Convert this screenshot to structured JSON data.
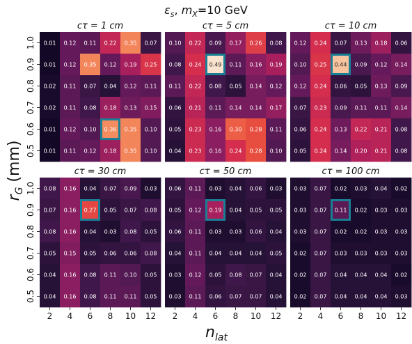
{
  "figure": {
    "title": "εs, mX=10 GeV",
    "title_parts": {
      "eps": "ε",
      "eps_sub": "s",
      "sep": ", ",
      "m": "m",
      "m_sub": "X",
      "rest": "=10 GeV"
    },
    "xlabel": {
      "base": "n",
      "sub": "lat"
    },
    "ylabel": {
      "base": "r",
      "sub": "G",
      "rest": " (mm)"
    },
    "highlight_color": "#1a7f94"
  },
  "chart_data": [
    {
      "type": "heatmap",
      "title": "cτ = 1 cm",
      "x": [
        "2",
        "4",
        "6",
        "8",
        "10",
        "12"
      ],
      "y": [
        "1.0",
        "0.9",
        "0.8",
        "0.7",
        "0.6",
        "0.5"
      ],
      "values": [
        [
          0.01,
          0.12,
          0.11,
          0.22,
          0.35,
          0.07
        ],
        [
          0.01,
          0.12,
          0.35,
          0.12,
          0.19,
          0.25
        ],
        [
          0.02,
          0.11,
          0.07,
          0.04,
          0.12,
          0.11
        ],
        [
          0.02,
          0.11,
          0.08,
          0.18,
          0.13,
          0.15
        ],
        [
          0.01,
          0.12,
          0.1,
          0.36,
          0.35,
          0.1
        ],
        [
          0.01,
          0.11,
          0.12,
          0.18,
          0.35,
          0.1
        ]
      ],
      "highlight": {
        "x": "8",
        "y": "0.6"
      }
    },
    {
      "type": "heatmap",
      "title": "cτ = 5 cm",
      "x": [
        "2",
        "4",
        "6",
        "8",
        "10",
        "12"
      ],
      "y": [
        "1.0",
        "0.9",
        "0.8",
        "0.7",
        "0.6",
        "0.5"
      ],
      "values": [
        [
          0.1,
          0.22,
          0.09,
          0.17,
          0.26,
          0.08
        ],
        [
          0.08,
          0.24,
          0.49,
          0.11,
          0.16,
          0.19
        ],
        [
          0.11,
          0.22,
          0.08,
          0.05,
          0.14,
          0.12
        ],
        [
          0.06,
          0.21,
          0.11,
          0.14,
          0.14,
          0.17
        ],
        [
          0.05,
          0.23,
          0.16,
          0.3,
          0.28,
          0.11
        ],
        [
          0.04,
          0.23,
          0.16,
          0.24,
          0.28,
          0.1
        ]
      ],
      "highlight": {
        "x": "6",
        "y": "0.9"
      }
    },
    {
      "type": "heatmap",
      "title": "cτ = 10 cm",
      "x": [
        "2",
        "4",
        "6",
        "8",
        "10",
        "12"
      ],
      "y": [
        "1.0",
        "0.9",
        "0.8",
        "0.7",
        "0.6",
        "0.5"
      ],
      "values": [
        [
          0.12,
          0.24,
          0.07,
          0.13,
          0.18,
          0.06
        ],
        [
          0.1,
          0.25,
          0.44,
          0.09,
          0.12,
          0.14
        ],
        [
          0.12,
          0.24,
          0.06,
          0.05,
          0.13,
          0.09
        ],
        [
          0.07,
          0.23,
          0.09,
          0.11,
          0.11,
          0.14
        ],
        [
          0.06,
          0.24,
          0.13,
          0.22,
          0.21,
          0.08
        ],
        [
          0.05,
          0.24,
          0.14,
          0.2,
          0.21,
          0.08
        ]
      ],
      "highlight": {
        "x": "6",
        "y": "0.9"
      }
    },
    {
      "type": "heatmap",
      "title": "cτ = 30 cm",
      "x": [
        "2",
        "4",
        "6",
        "8",
        "10",
        "12"
      ],
      "y": [
        "1.0",
        "0.9",
        "0.8",
        "0.7",
        "0.6",
        "0.5"
      ],
      "values": [
        [
          0.08,
          0.16,
          0.04,
          0.07,
          0.09,
          0.03
        ],
        [
          0.07,
          0.16,
          0.27,
          0.05,
          0.07,
          0.08
        ],
        [
          0.08,
          0.16,
          0.04,
          0.03,
          0.08,
          0.05
        ],
        [
          0.05,
          0.15,
          0.05,
          0.06,
          0.06,
          0.08
        ],
        [
          0.04,
          0.16,
          0.08,
          0.11,
          0.1,
          0.05
        ],
        [
          0.04,
          0.16,
          0.08,
          0.11,
          0.11,
          0.05
        ]
      ],
      "highlight": {
        "x": "6",
        "y": "0.9"
      }
    },
    {
      "type": "heatmap",
      "title": "cτ = 50 cm",
      "x": [
        "2",
        "4",
        "6",
        "8",
        "10",
        "12"
      ],
      "y": [
        "1.0",
        "0.9",
        "0.8",
        "0.7",
        "0.6",
        "0.5"
      ],
      "values": [
        [
          0.06,
          0.11,
          0.03,
          0.04,
          0.06,
          0.03
        ],
        [
          0.05,
          0.12,
          0.19,
          0.04,
          0.05,
          0.05
        ],
        [
          0.06,
          0.11,
          0.03,
          0.03,
          0.06,
          0.04
        ],
        [
          0.04,
          0.11,
          0.04,
          0.04,
          0.04,
          0.05
        ],
        [
          0.03,
          0.12,
          0.05,
          0.08,
          0.07,
          0.04
        ],
        [
          0.03,
          0.11,
          0.06,
          0.07,
          0.07,
          0.04
        ]
      ],
      "highlight": {
        "x": "6",
        "y": "0.9"
      }
    },
    {
      "type": "heatmap",
      "title": "cτ = 100 cm",
      "x": [
        "2",
        "4",
        "6",
        "8",
        "10",
        "12"
      ],
      "y": [
        "1.0",
        "0.9",
        "0.8",
        "0.7",
        "0.6",
        "0.5"
      ],
      "values": [
        [
          0.03,
          0.07,
          0.02,
          0.03,
          0.04,
          0.02
        ],
        [
          0.03,
          0.07,
          0.11,
          0.02,
          0.03,
          0.03
        ],
        [
          0.03,
          0.07,
          0.02,
          0.02,
          0.03,
          0.03
        ],
        [
          0.02,
          0.07,
          0.03,
          0.03,
          0.03,
          0.03
        ],
        [
          0.02,
          0.07,
          0.04,
          0.04,
          0.04,
          0.02
        ],
        [
          0.02,
          0.07,
          0.04,
          0.04,
          0.04,
          0.03
        ]
      ],
      "highlight": {
        "x": "6",
        "y": "0.9"
      }
    }
  ]
}
